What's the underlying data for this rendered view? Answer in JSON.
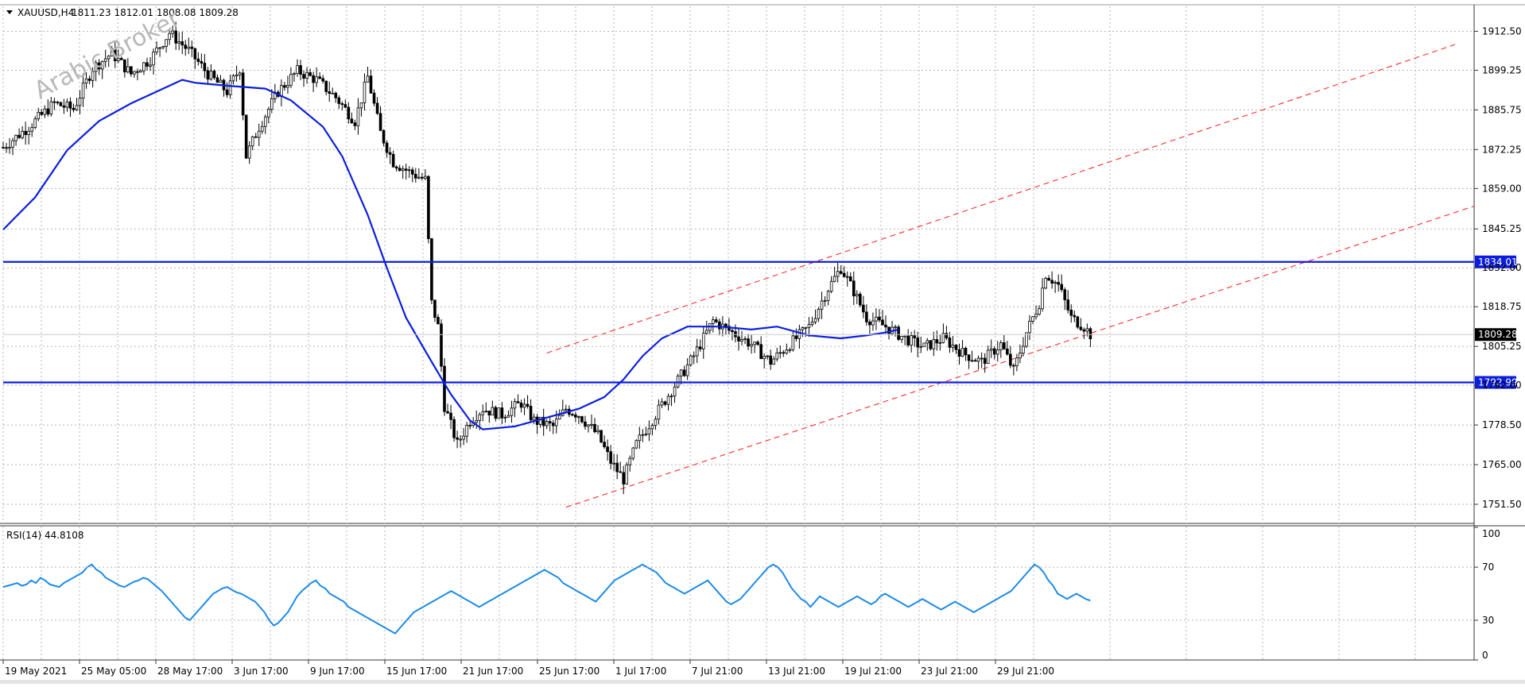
{
  "header": {
    "symbol": "XAUUSD,H4",
    "ohlc": "1811.23 1812.01 1808.08 1809.28"
  },
  "watermark": "Arabic Broker",
  "colors": {
    "candle": "#000000",
    "ma": "#0b1ee0",
    "levels": "#0b1ee0",
    "channel": "#ff2a2a",
    "rsi": "#1e8be6",
    "grid": "#b5b5b5",
    "price_tag_bg": "#000000"
  },
  "chart_data": [
    {
      "type": "line",
      "title": "XAUUSD,H4",
      "subtitle": "1811.23 1812.01 1808.08 1809.28",
      "ylim": [
        1745.0,
        1921.0
      ],
      "yticks": [
        "1912.50",
        "1899.25",
        "1885.75",
        "1872.25",
        "1859.00",
        "1845.25",
        "1832.00",
        "1818.75",
        "1805.25",
        "1792.00",
        "1778.50",
        "1765.00",
        "1751.50"
      ],
      "xticks": [
        "19 May 2021",
        "25 May 05:00",
        "28 May 17:00",
        "3 Jun 17:00",
        "9 Jun 17:00",
        "15 Jun 17:00",
        "21 Jun 17:00",
        "25 Jun 17:00",
        "1 Jul 17:00",
        "7 Jul 21:00",
        "13 Jul 21:00",
        "19 Jul 21:00",
        "23 Jul 21:00",
        "29 Jul 21:00"
      ],
      "close_path": [
        [
          0,
          1873
        ],
        [
          8,
          1880
        ],
        [
          16,
          1888
        ],
        [
          22,
          1886
        ],
        [
          28,
          1900
        ],
        [
          34,
          1905
        ],
        [
          40,
          1898
        ],
        [
          46,
          1903
        ],
        [
          52,
          1912
        ],
        [
          58,
          1906
        ],
        [
          64,
          1898
        ],
        [
          70,
          1892
        ],
        [
          74,
          1900
        ],
        [
          76,
          1870
        ],
        [
          80,
          1880
        ],
        [
          86,
          1892
        ],
        [
          92,
          1899
        ],
        [
          98,
          1896
        ],
        [
          104,
          1890
        ],
        [
          110,
          1882
        ],
        [
          114,
          1897
        ],
        [
          118,
          1878
        ],
        [
          122,
          1868
        ],
        [
          128,
          1864
        ],
        [
          132,
          1862
        ],
        [
          134,
          1820
        ],
        [
          136,
          1812
        ],
        [
          138,
          1785
        ],
        [
          142,
          1772
        ],
        [
          146,
          1780
        ],
        [
          150,
          1784
        ],
        [
          156,
          1782
        ],
        [
          162,
          1786
        ],
        [
          166,
          1780
        ],
        [
          172,
          1778
        ],
        [
          176,
          1784
        ],
        [
          180,
          1782
        ],
        [
          186,
          1775
        ],
        [
          190,
          1766
        ],
        [
          194,
          1760
        ],
        [
          198,
          1772
        ],
        [
          204,
          1782
        ],
        [
          210,
          1792
        ],
        [
          216,
          1802
        ],
        [
          222,
          1814
        ],
        [
          228,
          1810
        ],
        [
          234,
          1806
        ],
        [
          240,
          1800
        ],
        [
          246,
          1806
        ],
        [
          252,
          1812
        ],
        [
          258,
          1825
        ],
        [
          262,
          1832
        ],
        [
          266,
          1824
        ],
        [
          270,
          1815
        ],
        [
          276,
          1812
        ],
        [
          282,
          1808
        ],
        [
          288,
          1805
        ],
        [
          294,
          1808
        ],
        [
          300,
          1803
        ],
        [
          306,
          1800
        ],
        [
          312,
          1806
        ],
        [
          316,
          1797
        ],
        [
          320,
          1810
        ],
        [
          324,
          1820
        ],
        [
          326,
          1830
        ],
        [
          330,
          1826
        ],
        [
          334,
          1815
        ],
        [
          338,
          1812
        ],
        [
          340,
          1809.28
        ]
      ],
      "series": [
        {
          "name": "MA",
          "points": [
            [
              0,
              1845
            ],
            [
              10,
              1856
            ],
            [
              20,
              1872
            ],
            [
              30,
              1882
            ],
            [
              40,
              1888
            ],
            [
              50,
              1893
            ],
            [
              56,
              1896
            ],
            [
              60,
              1895
            ],
            [
              70,
              1894
            ],
            [
              82,
              1893
            ],
            [
              90,
              1889
            ],
            [
              100,
              1880
            ],
            [
              106,
              1870
            ],
            [
              114,
              1850
            ],
            [
              120,
              1832
            ],
            [
              126,
              1815
            ],
            [
              134,
              1800
            ],
            [
              140,
              1789
            ],
            [
              146,
              1780
            ],
            [
              150,
              1777
            ],
            [
              160,
              1778
            ],
            [
              170,
              1781
            ],
            [
              180,
              1784
            ],
            [
              188,
              1788
            ],
            [
              194,
              1794
            ],
            [
              200,
              1802
            ],
            [
              206,
              1808
            ],
            [
              214,
              1812
            ],
            [
              224,
              1812
            ],
            [
              234,
              1811
            ],
            [
              242,
              1812
            ],
            [
              252,
              1809
            ],
            [
              262,
              1808
            ],
            [
              270,
              1809
            ],
            [
              276,
              1810
            ],
            [
              280,
              1811
            ]
          ],
          "x_offset_bars": 60
        }
      ],
      "levels": [
        {
          "value": 1834.01,
          "label": "1834.01"
        },
        {
          "value": 1792.99,
          "label": "1792.99"
        }
      ],
      "current_price": {
        "value": 1809.28,
        "label": "1809.28"
      },
      "channel": [
        {
          "from": [
            176,
            1750.5
          ],
          "to": [
            460,
            1853
          ]
        },
        {
          "from": [
            170,
            1803
          ],
          "to": [
            454,
            1908
          ]
        }
      ]
    },
    {
      "type": "line",
      "title": "RSI(14) 44.8108",
      "ylim": [
        0,
        100
      ],
      "yticks": [
        "100",
        "70",
        "30",
        "0"
      ],
      "series": [
        {
          "name": "RSI(14)",
          "values": [
            55,
            56,
            57,
            58,
            56,
            57,
            60,
            58,
            62,
            60,
            57,
            56,
            55,
            58,
            60,
            62,
            64,
            66,
            70,
            72,
            68,
            66,
            62,
            60,
            58,
            56,
            55,
            57,
            59,
            60,
            62,
            61,
            58,
            55,
            52,
            48,
            44,
            40,
            36,
            32,
            30,
            34,
            38,
            42,
            46,
            50,
            52,
            54,
            55,
            53,
            51,
            50,
            48,
            46,
            44,
            40,
            36,
            30,
            26,
            28,
            32,
            36,
            42,
            48,
            52,
            55,
            58,
            60,
            56,
            54,
            50,
            48,
            46,
            44,
            40,
            38,
            36,
            34,
            32,
            30,
            28,
            26,
            24,
            22,
            20,
            24,
            28,
            32,
            36,
            38,
            40,
            42,
            44,
            46,
            48,
            50,
            52,
            50,
            48,
            46,
            44,
            42,
            40,
            42,
            44,
            46,
            48,
            50,
            52,
            54,
            56,
            58,
            60,
            62,
            64,
            66,
            68,
            66,
            64,
            62,
            58,
            56,
            54,
            52,
            50,
            48,
            46,
            44,
            48,
            52,
            56,
            60,
            62,
            64,
            66,
            68,
            70,
            72,
            70,
            68,
            66,
            62,
            58,
            56,
            54,
            52,
            50,
            52,
            54,
            56,
            58,
            60,
            56,
            52,
            48,
            44,
            42,
            44,
            46,
            50,
            54,
            58,
            62,
            66,
            70,
            72,
            70,
            66,
            60,
            54,
            50,
            46,
            44,
            40,
            44,
            48,
            46,
            44,
            42,
            40,
            42,
            44,
            46,
            48,
            46,
            44,
            42,
            44,
            48,
            50,
            48,
            46,
            44,
            42,
            40,
            42,
            44,
            46,
            44,
            42,
            40,
            38,
            40,
            42,
            44,
            42,
            40,
            38,
            36,
            38,
            40,
            42,
            44,
            46,
            48,
            50,
            52,
            56,
            60,
            64,
            68,
            72,
            70,
            66,
            60,
            56,
            50,
            48,
            46,
            48,
            50,
            48,
            46,
            44.81
          ]
        }
      ]
    }
  ]
}
